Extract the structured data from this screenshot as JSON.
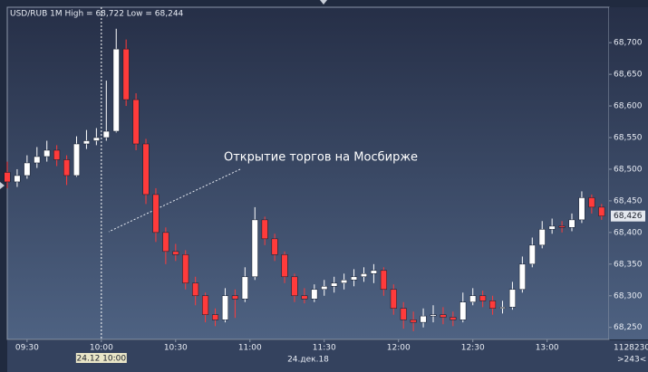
{
  "chart_data": {
    "type": "candlestick",
    "title": "USD/RUB 1M High = 68,722 Low = 68,244",
    "annotation": "Открытие торгов на Мосбирже",
    "x": [
      "09:22",
      "09:26",
      "09:30",
      "09:34",
      "09:38",
      "09:42",
      "09:46",
      "09:50",
      "09:54",
      "09:58",
      "10:02",
      "10:06",
      "10:10",
      "10:14",
      "10:18",
      "10:22",
      "10:26",
      "10:30",
      "10:34",
      "10:38",
      "10:42",
      "10:46",
      "10:50",
      "10:54",
      "10:58",
      "11:02",
      "11:06",
      "11:10",
      "11:14",
      "11:18",
      "11:22",
      "11:26",
      "11:30",
      "11:34",
      "11:38",
      "11:42",
      "11:46",
      "11:50",
      "11:54",
      "11:58",
      "12:02",
      "12:06",
      "12:10",
      "12:14",
      "12:18",
      "12:22",
      "12:26",
      "12:30",
      "12:34",
      "12:38",
      "12:42",
      "12:46",
      "12:50",
      "12:54",
      "12:58",
      "13:02",
      "13:06",
      "13:10",
      "13:14",
      "13:18",
      "13:22"
    ],
    "open": [
      68.495,
      68.48,
      68.49,
      68.51,
      68.52,
      68.53,
      68.515,
      68.49,
      68.54,
      68.545,
      68.55,
      68.56,
      68.69,
      68.61,
      68.54,
      68.46,
      68.4,
      68.37,
      68.365,
      68.32,
      68.3,
      68.27,
      68.262,
      68.3,
      68.295,
      68.33,
      68.42,
      68.39,
      68.365,
      68.33,
      68.3,
      68.295,
      68.31,
      68.315,
      68.32,
      68.325,
      68.33,
      68.335,
      68.34,
      68.31,
      68.28,
      68.262,
      68.258,
      68.268,
      68.27,
      68.266,
      68.262,
      68.29,
      68.3,
      68.292,
      68.28,
      68.282,
      68.31,
      68.35,
      68.38,
      68.405,
      68.41,
      68.408,
      68.42,
      68.455,
      68.44
    ],
    "high": [
      68.512,
      68.5,
      68.522,
      68.535,
      68.545,
      68.538,
      68.522,
      68.552,
      68.562,
      68.565,
      68.64,
      68.722,
      68.705,
      68.62,
      68.548,
      68.47,
      68.408,
      68.382,
      68.372,
      68.33,
      68.305,
      68.28,
      68.312,
      68.31,
      68.345,
      68.44,
      68.425,
      68.398,
      68.37,
      68.335,
      68.312,
      68.318,
      68.325,
      68.33,
      68.335,
      68.342,
      68.345,
      68.35,
      68.345,
      68.318,
      68.29,
      68.275,
      68.28,
      68.285,
      68.282,
      68.275,
      68.305,
      68.312,
      68.308,
      68.3,
      68.292,
      68.322,
      68.362,
      68.392,
      68.418,
      68.422,
      68.418,
      68.43,
      68.465,
      68.46,
      68.445
    ],
    "low": [
      68.47,
      68.472,
      68.485,
      68.502,
      68.512,
      68.505,
      68.475,
      68.488,
      68.532,
      68.538,
      68.545,
      68.558,
      68.6,
      68.53,
      68.445,
      68.385,
      68.35,
      68.355,
      68.31,
      68.285,
      68.258,
      68.252,
      68.258,
      68.265,
      68.29,
      68.325,
      68.38,
      68.355,
      68.32,
      68.29,
      68.288,
      68.29,
      68.3,
      68.305,
      68.31,
      68.315,
      68.322,
      68.32,
      68.3,
      68.27,
      68.248,
      68.244,
      68.25,
      68.258,
      68.255,
      68.252,
      68.258,
      68.285,
      68.282,
      68.27,
      68.272,
      68.278,
      68.305,
      68.345,
      68.375,
      68.398,
      68.4,
      68.402,
      68.415,
      68.43,
      68.42
    ],
    "close": [
      68.48,
      68.49,
      68.51,
      68.52,
      68.53,
      68.515,
      68.49,
      68.54,
      68.545,
      68.55,
      68.56,
      68.69,
      68.61,
      68.54,
      68.46,
      68.4,
      68.37,
      68.365,
      68.32,
      68.3,
      68.27,
      68.262,
      68.3,
      68.295,
      68.33,
      68.42,
      68.39,
      68.365,
      68.33,
      68.3,
      68.295,
      68.31,
      68.315,
      68.32,
      68.325,
      68.33,
      68.335,
      68.34,
      68.31,
      68.28,
      68.262,
      68.258,
      68.268,
      68.27,
      68.266,
      68.262,
      68.29,
      68.3,
      68.292,
      68.28,
      68.282,
      68.31,
      68.35,
      68.38,
      68.405,
      68.41,
      68.408,
      68.42,
      68.455,
      68.44,
      68.426
    ],
    "up_color": "#ffffff",
    "down_color": "#ff3b3b",
    "xlim": [
      "09:22",
      "13:25"
    ],
    "xticks": [
      "09:30",
      "10:00",
      "10:30",
      "11:00",
      "11:30",
      "12:00",
      "12:30",
      "13:00"
    ],
    "ylim": [
      68.231,
      68.756
    ],
    "yticks": [
      {
        "value": 68.25,
        "label": "68,250"
      },
      {
        "value": 68.3,
        "label": "68,300"
      },
      {
        "value": 68.35,
        "label": "68,350"
      },
      {
        "value": 68.4,
        "label": "68,400"
      },
      {
        "value": 68.45,
        "label": "68,450"
      },
      {
        "value": 68.5,
        "label": "68,500"
      },
      {
        "value": 68.55,
        "label": "68,550"
      },
      {
        "value": 68.6,
        "label": "68,600"
      },
      {
        "value": 68.65,
        "label": "68,650"
      },
      {
        "value": 68.7,
        "label": "68,700"
      }
    ],
    "last_price": {
      "value": 68.426,
      "label": "68,426"
    },
    "crosshair": {
      "x": "10:00",
      "label": "24.12 10:00"
    },
    "date_label": "24.дек.18",
    "volume": 1128230,
    "bar_count_label": ">243<"
  }
}
